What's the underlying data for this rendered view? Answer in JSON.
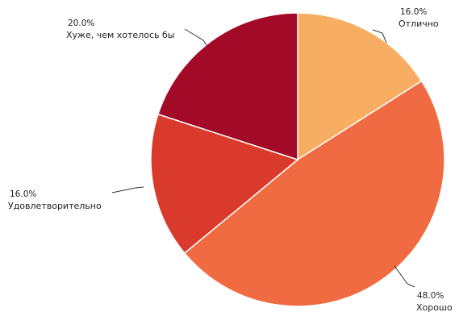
{
  "chart_data": {
    "type": "pie",
    "slices": [
      {
        "label": "Отлично",
        "value": 16.0,
        "value_label": "16.0%",
        "color": "#F8AE62"
      },
      {
        "label": "Хорошо",
        "value": 48.0,
        "value_label": "48.0%",
        "color": "#F06A42"
      },
      {
        "label": "Удовлетворительно",
        "value": 16.0,
        "value_label": "16.0%",
        "color": "#D93A2B"
      },
      {
        "label": "Хуже, чем хотелось бы",
        "value": 20.0,
        "value_label": "20.0%",
        "color": "#A30A28"
      }
    ],
    "start_angle": "12 o'clock",
    "direction": "clockwise",
    "legend": "none"
  }
}
